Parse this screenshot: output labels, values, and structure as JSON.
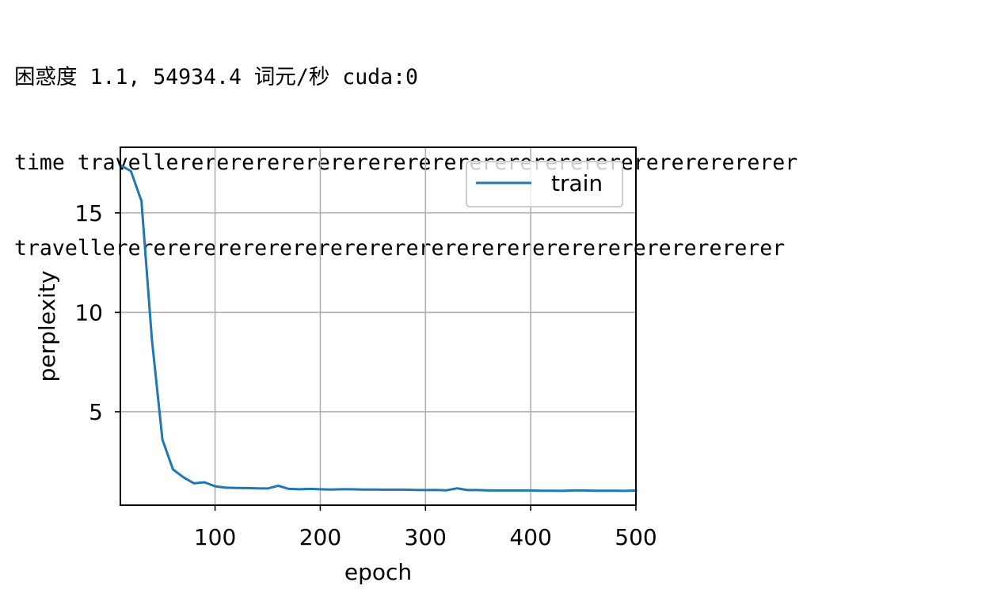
{
  "output": {
    "lines": [
      "困惑度 1.1, 54934.4 词元/秒 cuda:0",
      "time travellererererererererererererererererererererererererer",
      "travellererererererererererererererererererererererererererer"
    ]
  },
  "chart_data": {
    "type": "line",
    "xlabel": "epoch",
    "ylabel": "perplexity",
    "xlim": [
      10,
      500
    ],
    "ylim": [
      0.3,
      18.3
    ],
    "xticks": [
      100,
      200,
      300,
      400,
      500
    ],
    "yticks": [
      5,
      10,
      15
    ],
    "grid": true,
    "legend": "top-right",
    "series": [
      {
        "name": "train",
        "color": "#1f77b4",
        "x": [
          10,
          20,
          30,
          40,
          50,
          60,
          70,
          80,
          90,
          100,
          110,
          120,
          130,
          140,
          150,
          160,
          170,
          180,
          190,
          200,
          210,
          220,
          230,
          240,
          250,
          260,
          270,
          280,
          290,
          300,
          310,
          320,
          330,
          340,
          350,
          360,
          370,
          380,
          390,
          400,
          410,
          420,
          430,
          440,
          450,
          460,
          470,
          480,
          490,
          500
        ],
        "y": [
          17.4,
          17.1,
          15.6,
          8.6,
          3.6,
          2.1,
          1.7,
          1.4,
          1.45,
          1.25,
          1.18,
          1.17,
          1.16,
          1.15,
          1.14,
          1.28,
          1.12,
          1.1,
          1.12,
          1.1,
          1.09,
          1.1,
          1.1,
          1.09,
          1.09,
          1.08,
          1.08,
          1.08,
          1.07,
          1.06,
          1.07,
          1.05,
          1.15,
          1.06,
          1.06,
          1.04,
          1.04,
          1.04,
          1.04,
          1.04,
          1.03,
          1.03,
          1.02,
          1.04,
          1.04,
          1.03,
          1.03,
          1.03,
          1.02,
          1.04
        ]
      }
    ]
  }
}
